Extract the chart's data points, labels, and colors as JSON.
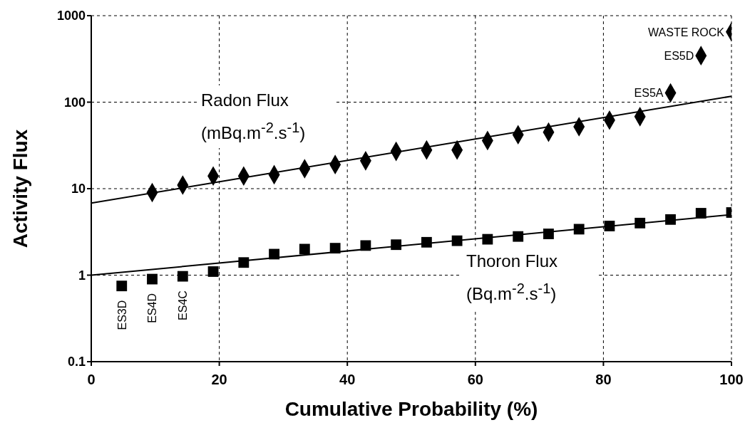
{
  "chart_data": {
    "type": "scatter",
    "xlabel": "Cumulative Probability (%)",
    "ylabel": "Activity Flux",
    "series": [
      {
        "name": "Radon Flux (mBq.m$^{-2}$.s$^{-1}$)",
        "color": "#000000",
        "marker": "diamond",
        "x": [
          9.52,
          14.29,
          19.05,
          23.81,
          28.57,
          33.33,
          38.1,
          42.86,
          47.62,
          52.38,
          57.14,
          61.9,
          66.67,
          71.43,
          76.19,
          80.95,
          85.71,
          90.48,
          95.24,
          100
        ],
        "values": [
          9,
          11,
          14,
          14,
          14.5,
          17,
          19,
          21,
          27,
          28,
          28,
          36,
          42,
          45,
          52,
          62,
          68,
          128,
          345,
          650
        ]
      },
      {
        "name": "Thoron Flux (Bq.m$^{-2}$.s$^{-1}$)",
        "color": "#000000",
        "marker": "square",
        "x": [
          4.76,
          9.52,
          14.29,
          19.05,
          23.81,
          28.57,
          33.33,
          38.1,
          42.86,
          47.62,
          52.38,
          57.14,
          61.9,
          66.67,
          71.43,
          76.19,
          80.95,
          85.71,
          90.48,
          95.24,
          100
        ],
        "values": [
          0.75,
          0.9,
          0.97,
          1.1,
          1.4,
          1.75,
          2.0,
          2.05,
          2.2,
          2.25,
          2.4,
          2.5,
          2.6,
          2.8,
          3.0,
          3.4,
          3.7,
          4.0,
          4.4,
          5.2,
          5.3
        ]
      },
      {
        "type": "line",
        "color": "#000000",
        "marker": "none",
        "x": [
          0,
          100
        ],
        "values": [
          6.8,
          117
        ]
      },
      {
        "type": "line",
        "color": "#000000",
        "marker": "none",
        "x": [
          0,
          100
        ],
        "values": [
          1.0,
          5.0
        ]
      }
    ],
    "annotations": [
      {
        "text": "ES3D",
        "x": 4.76,
        "y": 0.75
      },
      {
        "text": "ES4D",
        "x": 9.52,
        "y": 0.9
      },
      {
        "text": "ES4C",
        "x": 14.29,
        "y": 0.97
      },
      {
        "text": "ES5A",
        "x": 90.48,
        "y": 128
      },
      {
        "text": "ES5D",
        "x": 95.24,
        "y": 345
      },
      {
        "text": "WASTE ROCK",
        "x": 100,
        "y": 650
      }
    ],
    "xlim": [
      0,
      100
    ],
    "xticks": [
      0,
      20,
      40,
      60,
      80,
      100
    ],
    "ylim": [
      0.1,
      1000
    ],
    "yticks": [
      0.1,
      1,
      10,
      100,
      1000
    ],
    "log": "y",
    "grid": true
  }
}
